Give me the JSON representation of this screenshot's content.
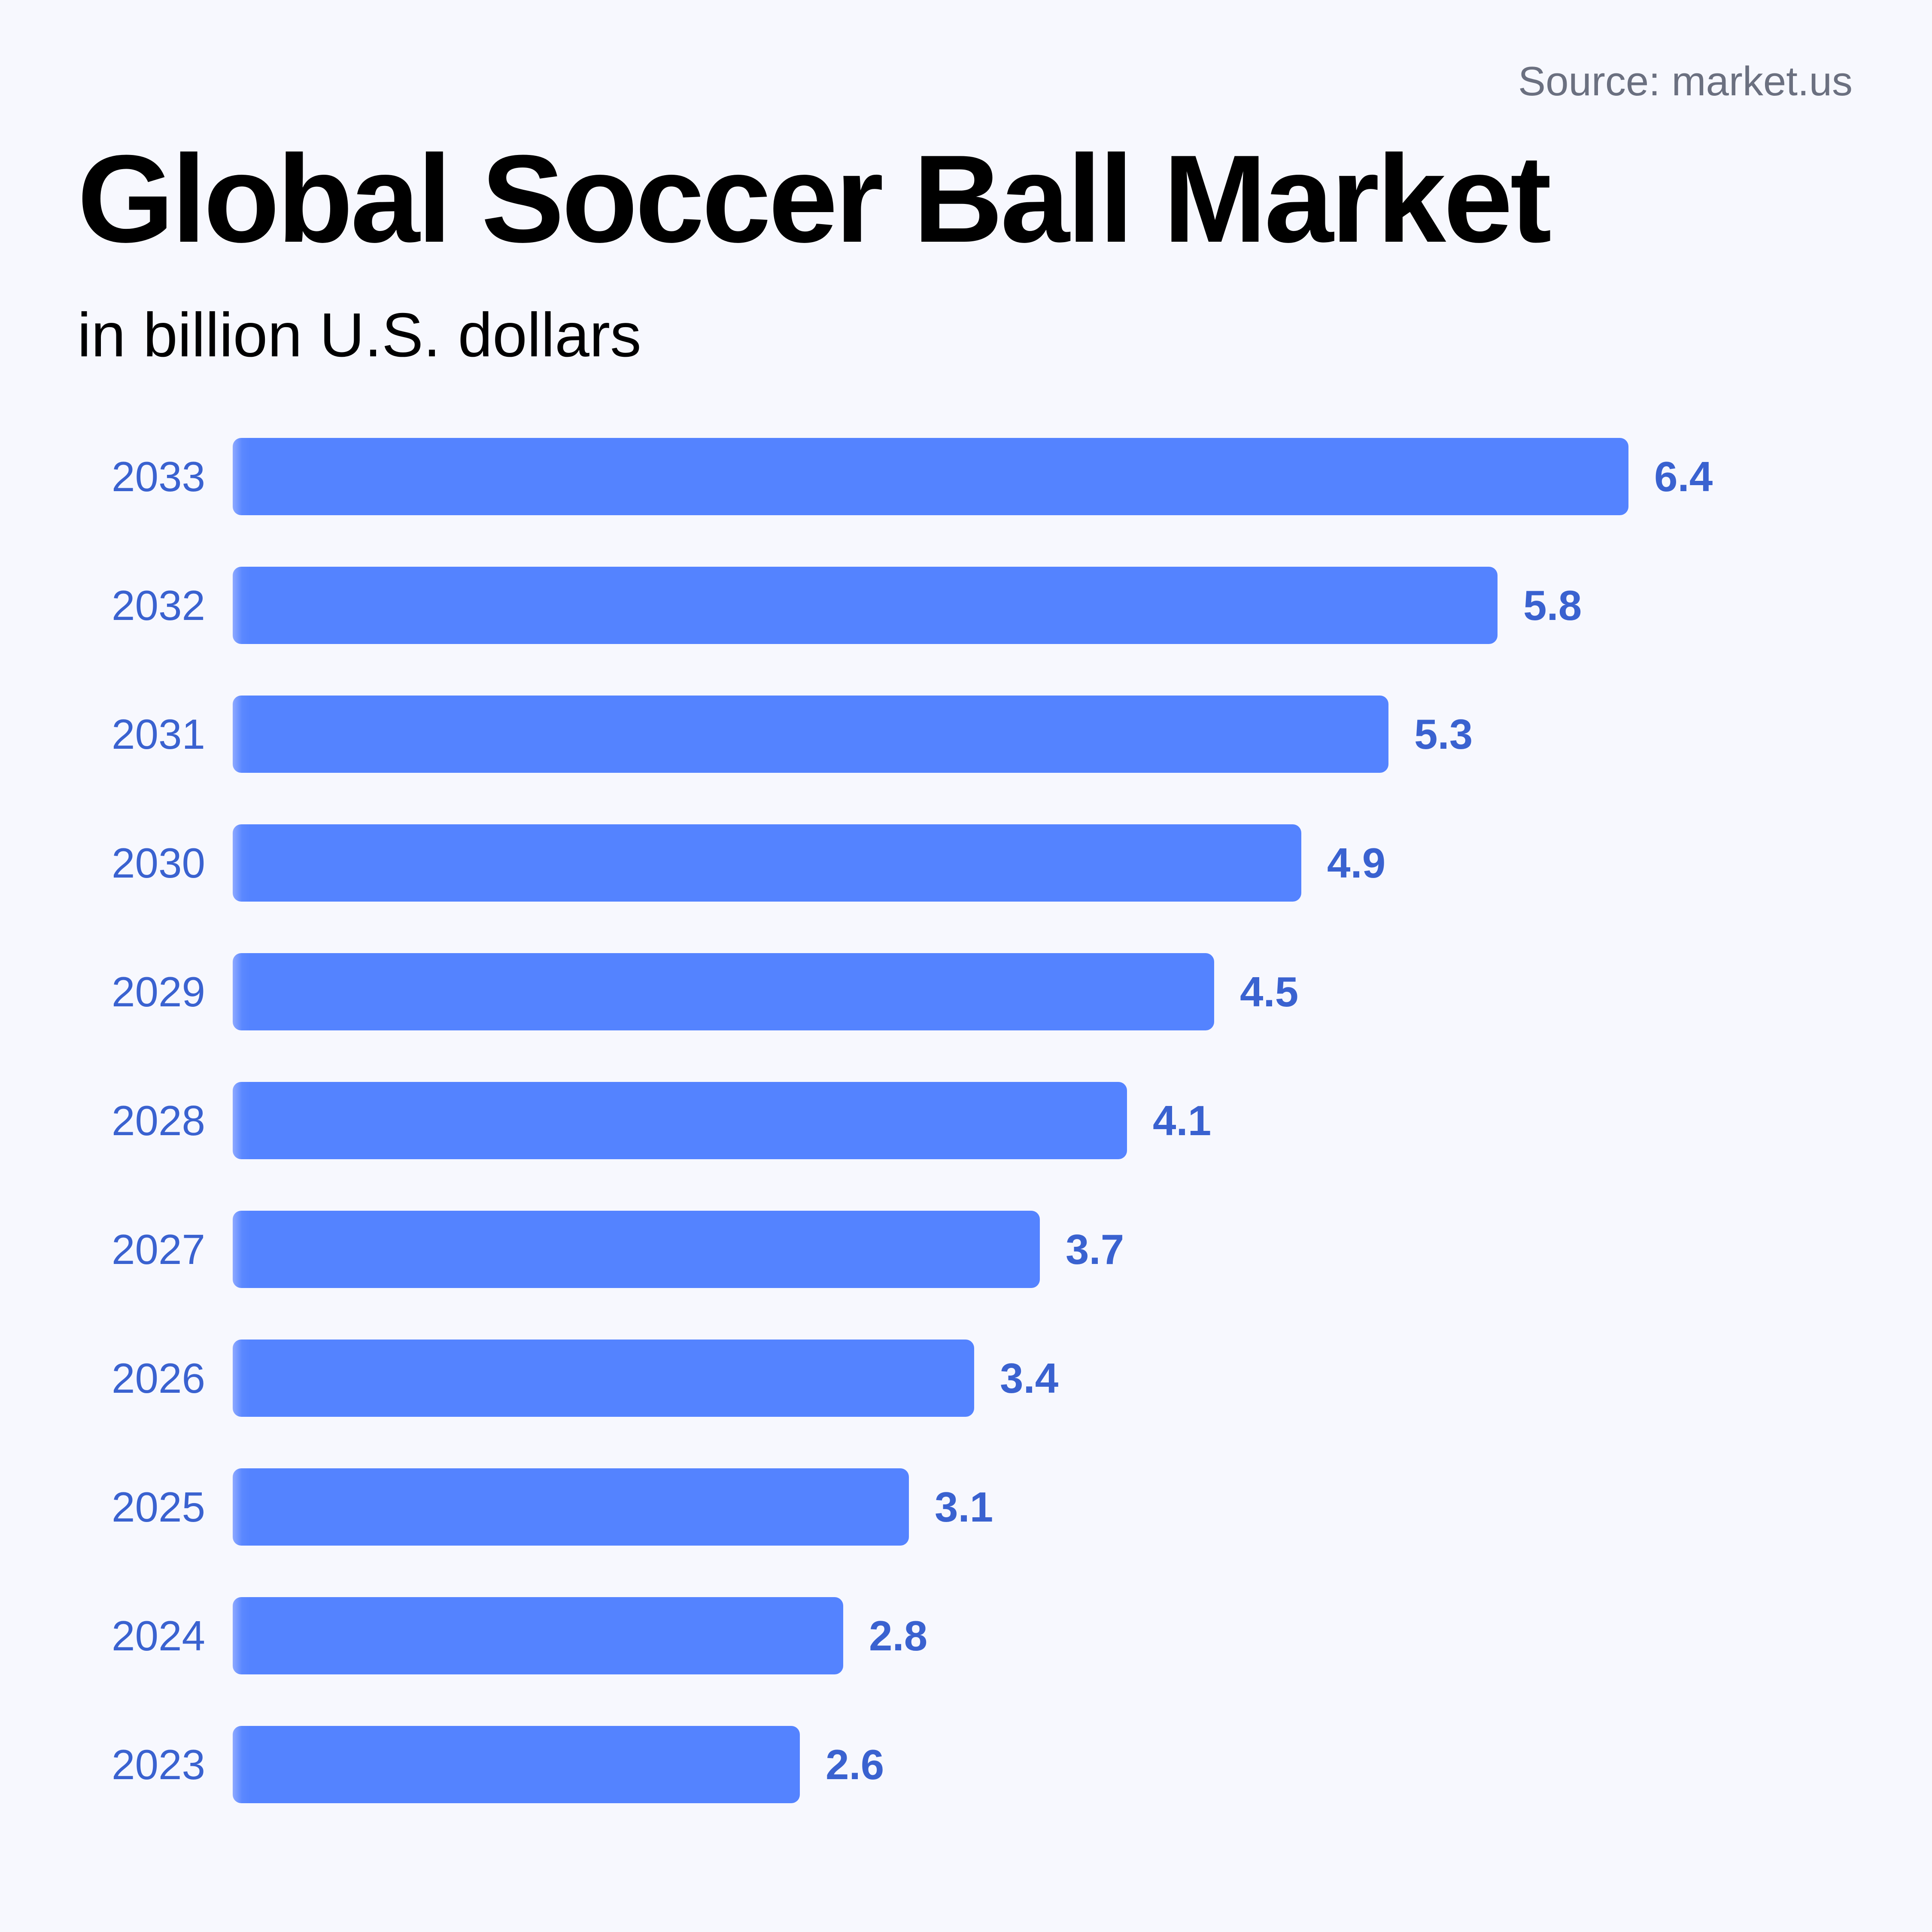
{
  "header": {
    "source": "Source: market.us",
    "title": "Global Soccer Ball Market",
    "subtitle": "in billion U.S. dollars"
  },
  "colors": {
    "background": "#F7F8FE",
    "bar": "#5483FF",
    "label": "#3A62D0",
    "source_text": "#6B7080",
    "title_text": "#000000"
  },
  "rows": [
    {
      "year": "2033",
      "value": "6.4"
    },
    {
      "year": "2032",
      "value": "5.8"
    },
    {
      "year": "2031",
      "value": "5.3"
    },
    {
      "year": "2030",
      "value": "4.9"
    },
    {
      "year": "2029",
      "value": "4.5"
    },
    {
      "year": "2028",
      "value": "4.1"
    },
    {
      "year": "2027",
      "value": "3.7"
    },
    {
      "year": "2026",
      "value": "3.4"
    },
    {
      "year": "2025",
      "value": "3.1"
    },
    {
      "year": "2024",
      "value": "2.8"
    },
    {
      "year": "2023",
      "value": "2.6"
    }
  ],
  "chart_data": {
    "type": "bar",
    "orientation": "horizontal",
    "title": "Global Soccer Ball Market",
    "subtitle": "in billion U.S. dollars",
    "source": "Source: market.us",
    "categories": [
      "2033",
      "2032",
      "2031",
      "2030",
      "2029",
      "2028",
      "2027",
      "2026",
      "2025",
      "2024",
      "2023"
    ],
    "values": [
      6.4,
      5.8,
      5.3,
      4.9,
      4.5,
      4.1,
      3.7,
      3.4,
      3.1,
      2.8,
      2.6
    ],
    "xlabel": "",
    "ylabel": "",
    "unit": "billion U.S. dollars",
    "data_labels": true,
    "grid": false,
    "legend": "none",
    "xlim": [
      0,
      6.4
    ]
  }
}
